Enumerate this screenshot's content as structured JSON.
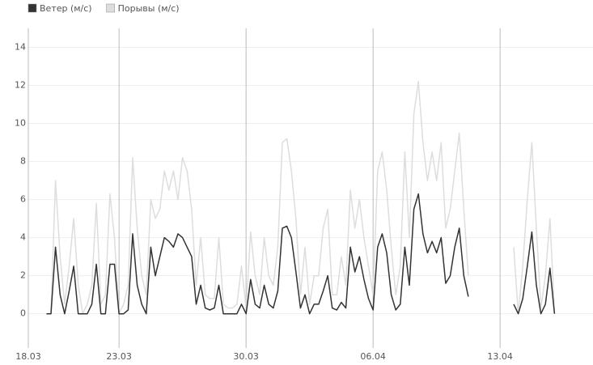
{
  "chart_data": {
    "type": "line",
    "x": [
      1,
      1.25,
      1.5,
      1.75,
      2,
      2.25,
      2.5,
      2.75,
      3,
      3.25,
      3.5,
      3.75,
      4,
      4.25,
      4.5,
      4.75,
      5,
      5.25,
      5.5,
      5.75,
      6,
      6.25,
      6.5,
      6.75,
      7,
      7.25,
      7.5,
      7.75,
      8,
      8.25,
      8.5,
      8.75,
      9,
      9.25,
      9.5,
      9.75,
      10,
      10.25,
      10.5,
      10.75,
      11,
      11.25,
      11.5,
      11.75,
      12,
      12.25,
      12.5,
      12.75,
      13,
      13.25,
      13.5,
      13.75,
      14,
      14.25,
      14.5,
      14.75,
      15,
      15.25,
      15.5,
      15.75,
      16,
      16.25,
      16.5,
      16.75,
      17,
      17.25,
      17.5,
      17.75,
      18,
      18.25,
      18.5,
      18.75,
      19,
      19.25,
      19.5,
      19.75,
      20,
      20.25,
      20.5,
      20.75,
      21,
      21.25,
      21.5,
      21.75,
      22,
      22.25,
      22.5,
      22.75,
      23,
      23.25,
      23.5,
      23.75,
      24,
      24.25,
      25.5,
      26.75,
      27,
      27.25,
      27.5,
      27.75,
      28,
      28.25,
      28.5,
      28.75,
      29
    ],
    "series": [
      {
        "name": "Ветер (м/с)",
        "color": "#333333",
        "values": [
          0,
          0,
          3.5,
          1.0,
          0,
          1.2,
          2.5,
          0,
          0,
          0,
          0.5,
          2.6,
          0,
          0,
          2.6,
          2.6,
          0,
          0,
          0.2,
          4.2,
          1.5,
          0.5,
          0,
          3.5,
          2.0,
          3.0,
          4.0,
          3.8,
          3.5,
          4.2,
          4.0,
          3.5,
          3.0,
          0.5,
          1.5,
          0.3,
          0.2,
          0.3,
          1.5,
          0,
          0,
          0,
          0,
          0.5,
          0,
          1.8,
          0.5,
          0.3,
          1.5,
          0.5,
          0.3,
          1.2,
          4.5,
          4.6,
          4.0,
          2.2,
          0.3,
          1.0,
          0,
          0.5,
          0.5,
          1.2,
          2.0,
          0.3,
          0.2,
          0.6,
          0.3,
          3.5,
          2.2,
          3.0,
          1.8,
          0.8,
          0.2,
          3.5,
          4.2,
          3.2,
          1.0,
          0.2,
          0.5,
          3.5,
          1.5,
          5.5,
          6.3,
          4.2,
          3.2,
          3.8,
          3.2,
          4.0,
          1.6,
          2.0,
          3.5,
          4.5,
          2.0,
          0.9,
          null,
          0.5,
          0,
          0.8,
          2.5,
          4.3,
          1.5,
          0,
          0.5,
          2.4,
          0
        ]
      },
      {
        "name": "Порывы (м/с)",
        "color": "#dddddd",
        "values": [
          0,
          0,
          7.0,
          3.0,
          0.5,
          2.5,
          5.0,
          1.5,
          0,
          0.5,
          1.5,
          5.8,
          0.5,
          1.0,
          6.3,
          4.0,
          0,
          0.5,
          1.5,
          8.2,
          4.5,
          2.0,
          1.0,
          6.0,
          5.0,
          5.5,
          7.5,
          6.5,
          7.5,
          6.0,
          8.2,
          7.5,
          5.5,
          1.5,
          4.0,
          1.0,
          0.8,
          0.8,
          4.0,
          0.5,
          0.3,
          0.3,
          0.5,
          2.5,
          0.3,
          4.3,
          2.0,
          1.0,
          4.0,
          2.0,
          1.5,
          3.5,
          9.0,
          9.2,
          7.5,
          5.0,
          1.0,
          3.5,
          0.5,
          2.0,
          2.0,
          4.5,
          5.5,
          1.0,
          1.0,
          3.0,
          1.5,
          6.5,
          4.5,
          6.0,
          4.0,
          2.5,
          1.0,
          7.5,
          8.5,
          6.5,
          3.5,
          1.0,
          2.5,
          8.5,
          4.0,
          10.5,
          12.2,
          9.0,
          7.0,
          8.5,
          7.0,
          9.0,
          4.5,
          5.5,
          7.5,
          9.5,
          5.5,
          2.0,
          null,
          3.5,
          0,
          2.5,
          6.0,
          9.0,
          4.5,
          0.3,
          2.0,
          5.0,
          0
        ]
      }
    ],
    "xlim": [
      0,
      31.12
    ],
    "xticks": [
      {
        "value": 0,
        "label": "18.03"
      },
      {
        "value": 5,
        "label": "23.03"
      },
      {
        "value": 12,
        "label": "30.03"
      },
      {
        "value": 19,
        "label": "06.04"
      },
      {
        "value": 26,
        "label": "13.04"
      }
    ],
    "ylim": [
      -1.8,
      15
    ],
    "yticks": [
      0,
      2,
      4,
      6,
      8,
      10,
      12,
      14
    ],
    "grid": true,
    "legend": "top-left"
  }
}
